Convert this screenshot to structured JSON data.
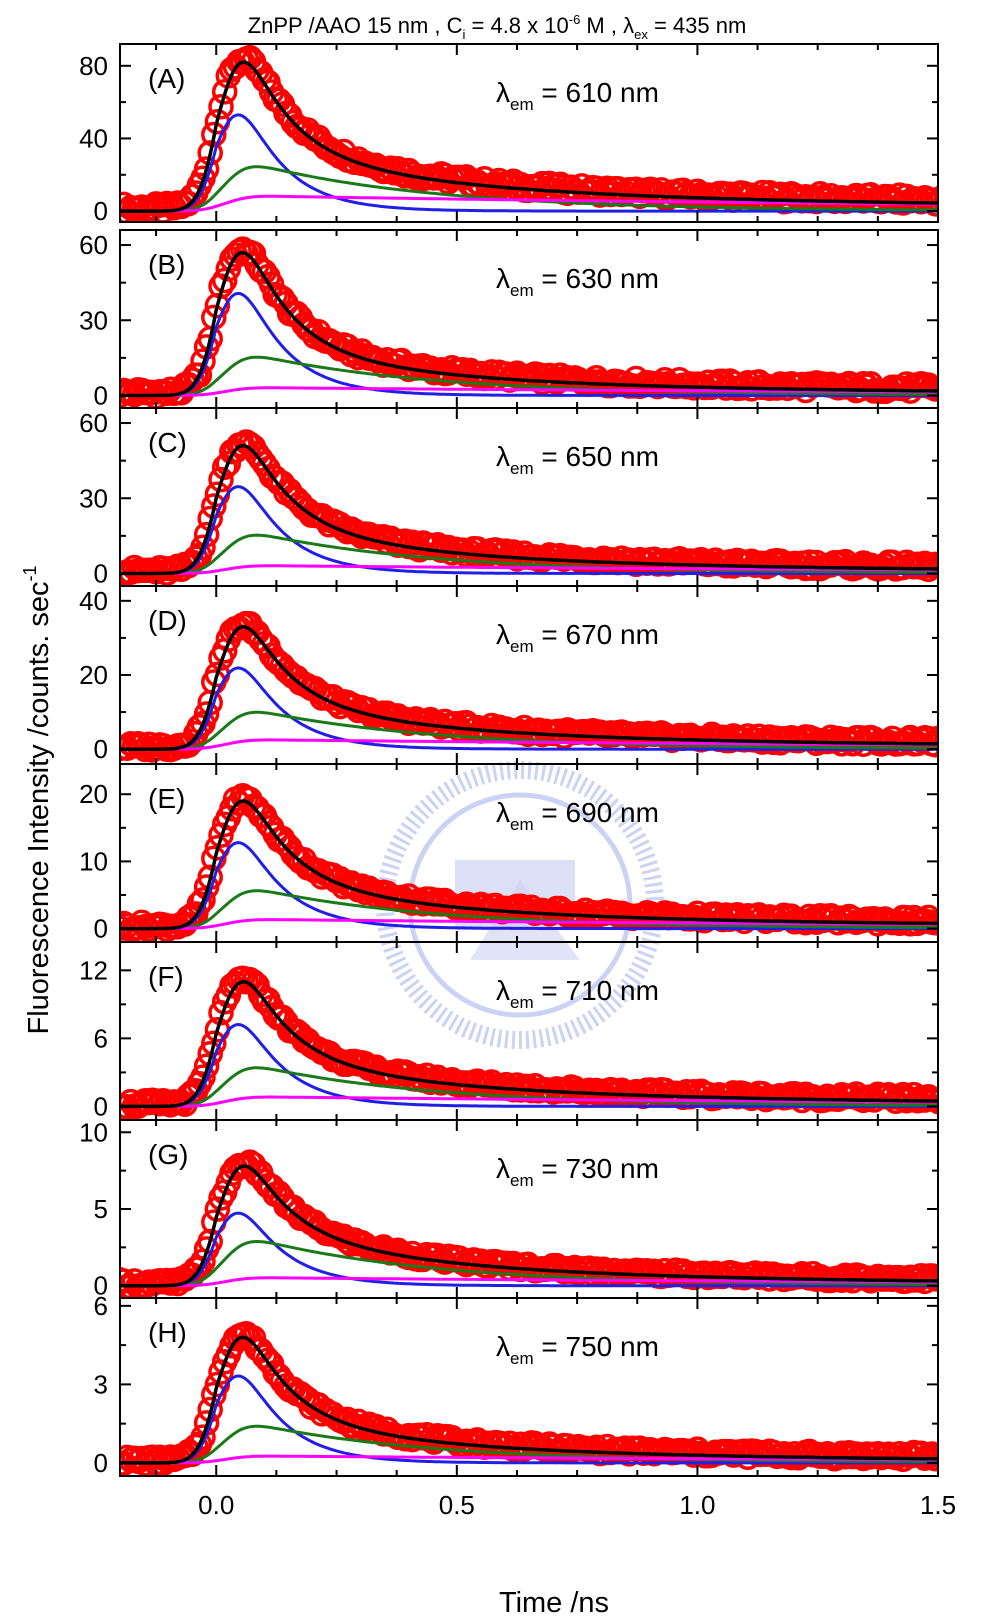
{
  "figure": {
    "title_parts": {
      "a": "ZnPP /AAO 15 nm , C",
      "a_sub": "i",
      "b": " = 4.8 x 10",
      "b_sup": "-6",
      "c": " M , λ",
      "c_sub": "ex",
      "d": " = 435 nm"
    },
    "ylabel": "Fluorescence Intensity /counts. sec",
    "ylabel_sup": "-1",
    "xlabel": "Time /ns",
    "xticks": [
      {
        "v": 0.0,
        "label": "0.0"
      },
      {
        "v": 0.5,
        "label": "0.5"
      },
      {
        "v": 1.0,
        "label": "1.0"
      },
      {
        "v": 1.5,
        "label": "1.5"
      }
    ],
    "xlim": [
      -0.2,
      1.5
    ],
    "watermark": "NCTU seal 1896"
  },
  "colors": {
    "data": "#ff0000",
    "fit": "#000000",
    "comp1": "#1f1fe6",
    "comp2": "#1a7a1a",
    "comp3": "#ff00ff",
    "axis": "#000000"
  },
  "chart_data": [
    {
      "type": "line",
      "panel": "(A)",
      "lambda_prefix": "λ",
      "lambda_sub": "em",
      "lambda_value": " = 610 nm",
      "yticks": [
        {
          "v": 0,
          "label": "0"
        },
        {
          "v": 40,
          "label": "40"
        },
        {
          "v": 80,
          "label": "80"
        }
      ],
      "ylim": [
        -6,
        92
      ],
      "peak": 82,
      "comp_amps": [
        52,
        24,
        8
      ]
    },
    {
      "type": "line",
      "panel": "(B)",
      "lambda_prefix": "λ",
      "lambda_sub": "em",
      "lambda_value": " = 630 nm",
      "yticks": [
        {
          "v": 0,
          "label": "0"
        },
        {
          "v": 30,
          "label": "30"
        },
        {
          "v": 60,
          "label": "60"
        }
      ],
      "ylim": [
        -5,
        66
      ],
      "peak": 57,
      "comp_amps": [
        40,
        15,
        3
      ]
    },
    {
      "type": "line",
      "panel": "(C)",
      "lambda_prefix": "λ",
      "lambda_sub": "em",
      "lambda_value": " = 650 nm",
      "yticks": [
        {
          "v": 0,
          "label": "0"
        },
        {
          "v": 30,
          "label": "30"
        },
        {
          "v": 60,
          "label": "60"
        }
      ],
      "ylim": [
        -5,
        66
      ],
      "peak": 51,
      "comp_amps": [
        34,
        15,
        3
      ]
    },
    {
      "type": "line",
      "panel": "(D)",
      "lambda_prefix": "λ",
      "lambda_sub": "em",
      "lambda_value": " = 670 nm",
      "yticks": [
        {
          "v": 0,
          "label": "0"
        },
        {
          "v": 20,
          "label": "20"
        },
        {
          "v": 40,
          "label": "40"
        }
      ],
      "ylim": [
        -4,
        44
      ],
      "peak": 33,
      "comp_amps": [
        22,
        10,
        2.5
      ]
    },
    {
      "type": "line",
      "panel": "(E)",
      "lambda_prefix": "λ",
      "lambda_sub": "em",
      "lambda_value": " = 690 nm",
      "yticks": [
        {
          "v": 0,
          "label": "0"
        },
        {
          "v": 10,
          "label": "10"
        },
        {
          "v": 20,
          "label": "20"
        }
      ],
      "ylim": [
        -2,
        24.5
      ],
      "peak": 19,
      "comp_amps": [
        12.5,
        5.5,
        1.3
      ]
    },
    {
      "type": "line",
      "panel": "(F)",
      "lambda_prefix": "λ",
      "lambda_sub": "em",
      "lambda_value": " = 710 nm",
      "yticks": [
        {
          "v": 0,
          "label": "0"
        },
        {
          "v": 6,
          "label": "6"
        },
        {
          "v": 12,
          "label": "12"
        }
      ],
      "ylim": [
        -1.2,
        14.5
      ],
      "peak": 11,
      "comp_amps": [
        7,
        3.3,
        0.8
      ]
    },
    {
      "type": "line",
      "panel": "(G)",
      "lambda_prefix": "λ",
      "lambda_sub": "em",
      "lambda_value": " = 730 nm",
      "yticks": [
        {
          "v": 0,
          "label": "0"
        },
        {
          "v": 5,
          "label": "5"
        },
        {
          "v": 10,
          "label": "10"
        }
      ],
      "ylim": [
        -0.8,
        10.8
      ],
      "peak": 7.8,
      "comp_amps": [
        4.6,
        2.8,
        0.5
      ]
    },
    {
      "type": "line",
      "panel": "(H)",
      "lambda_prefix": "λ",
      "lambda_sub": "em",
      "lambda_value": " = 750 nm",
      "yticks": [
        {
          "v": 0,
          "label": "0"
        },
        {
          "v": 3,
          "label": "3"
        },
        {
          "v": 6,
          "label": "6"
        }
      ],
      "ylim": [
        -0.5,
        6.3
      ],
      "peak": 4.8,
      "comp_amps": [
        3.2,
        1.35,
        0.25
      ]
    }
  ]
}
